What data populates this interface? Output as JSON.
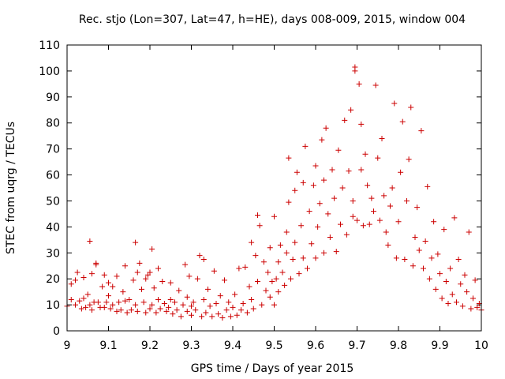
{
  "chart_data": {
    "type": "scatter",
    "title": "Rec. stjo (Lon=307, Lat=47, h=HE), days 008-009, 2015, window 004",
    "xlabel": "GPS time / Days of year 2015",
    "ylabel": "STEC from uqrg / TECUs",
    "xlim": [
      9,
      10
    ],
    "ylim": [
      0,
      110
    ],
    "xticks": [
      9,
      9.1,
      9.2,
      9.3,
      9.4,
      9.5,
      9.6,
      9.7,
      9.8,
      9.9,
      10
    ],
    "xtick_labels": [
      "9",
      "9.1",
      "9.2",
      "9.3",
      "9.4",
      "9.5",
      "9.6",
      "9.7",
      "9.8",
      "9.9",
      "10"
    ],
    "yticks": [
      0,
      10,
      20,
      30,
      40,
      50,
      60,
      70,
      80,
      90,
      100,
      110
    ],
    "ytick_labels": [
      "0",
      "10",
      "20",
      "30",
      "40",
      "50",
      "60",
      "70",
      "80",
      "90",
      "100",
      "110"
    ],
    "grid": false,
    "legend": false,
    "marker": "+",
    "color": "#cc0000",
    "series": [
      {
        "points": [
          [
            9.0,
            9.5
          ],
          [
            9.01,
            12
          ],
          [
            9.01,
            18
          ],
          [
            9.02,
            19.5
          ],
          [
            9.02,
            10
          ],
          [
            9.025,
            22.5
          ],
          [
            9.03,
            11.5
          ],
          [
            9.035,
            8.5
          ],
          [
            9.04,
            12.5
          ],
          [
            9.04,
            20.5
          ],
          [
            9.045,
            9
          ],
          [
            9.05,
            14
          ],
          [
            9.055,
            34.5
          ],
          [
            9.055,
            10
          ],
          [
            9.06,
            22
          ],
          [
            9.06,
            8
          ],
          [
            9.065,
            11
          ],
          [
            9.07,
            26
          ],
          [
            9.07,
            25.5
          ],
          [
            9.075,
            11
          ],
          [
            9.08,
            9
          ],
          [
            9.085,
            17
          ],
          [
            9.09,
            21.5
          ],
          [
            9.09,
            9
          ],
          [
            9.095,
            11
          ],
          [
            9.1,
            18.5
          ],
          [
            9.1,
            13.5
          ],
          [
            9.105,
            8.5
          ],
          [
            9.11,
            17
          ],
          [
            9.11,
            10
          ],
          [
            9.12,
            7.5
          ],
          [
            9.12,
            21
          ],
          [
            9.125,
            11
          ],
          [
            9.13,
            8
          ],
          [
            9.135,
            15
          ],
          [
            9.14,
            11.5
          ],
          [
            9.14,
            25
          ],
          [
            9.145,
            7
          ],
          [
            9.15,
            12
          ],
          [
            9.155,
            8
          ],
          [
            9.16,
            19.5
          ],
          [
            9.165,
            34
          ],
          [
            9.165,
            10
          ],
          [
            9.17,
            22.5
          ],
          [
            9.17,
            7.5
          ],
          [
            9.175,
            26
          ],
          [
            9.18,
            16
          ],
          [
            9.185,
            11
          ],
          [
            9.19,
            7
          ],
          [
            9.19,
            20
          ],
          [
            9.195,
            21.5
          ],
          [
            9.2,
            22.5
          ],
          [
            9.2,
            8.5
          ],
          [
            9.205,
            31.5
          ],
          [
            9.205,
            10
          ],
          [
            9.21,
            16.5
          ],
          [
            9.215,
            7
          ],
          [
            9.22,
            24
          ],
          [
            9.22,
            12
          ],
          [
            9.225,
            8.5
          ],
          [
            9.23,
            19
          ],
          [
            9.235,
            10.5
          ],
          [
            9.24,
            7.5
          ],
          [
            9.245,
            9
          ],
          [
            9.25,
            18.5
          ],
          [
            9.25,
            12
          ],
          [
            9.255,
            6.5
          ],
          [
            9.26,
            11
          ],
          [
            9.265,
            8
          ],
          [
            9.27,
            15.5
          ],
          [
            9.275,
            5.5
          ],
          [
            9.28,
            10
          ],
          [
            9.285,
            25.5
          ],
          [
            9.29,
            7.5
          ],
          [
            9.29,
            13
          ],
          [
            9.295,
            21
          ],
          [
            9.3,
            6
          ],
          [
            9.3,
            9.5
          ],
          [
            9.305,
            11
          ],
          [
            9.31,
            8
          ],
          [
            9.315,
            20
          ],
          [
            9.32,
            29
          ],
          [
            9.325,
            5.5
          ],
          [
            9.33,
            27.5
          ],
          [
            9.33,
            12
          ],
          [
            9.335,
            7
          ],
          [
            9.34,
            16
          ],
          [
            9.345,
            9.5
          ],
          [
            9.35,
            5.5
          ],
          [
            9.355,
            23
          ],
          [
            9.36,
            10.5
          ],
          [
            9.365,
            6.5
          ],
          [
            9.37,
            13.5
          ],
          [
            9.375,
            5
          ],
          [
            9.38,
            19.5
          ],
          [
            9.385,
            8
          ],
          [
            9.39,
            11
          ],
          [
            9.395,
            5.5
          ],
          [
            9.4,
            9
          ],
          [
            9.405,
            14
          ],
          [
            9.41,
            6
          ],
          [
            9.415,
            24
          ],
          [
            9.42,
            8
          ],
          [
            9.425,
            10.5
          ],
          [
            9.43,
            24.5
          ],
          [
            9.435,
            7
          ],
          [
            9.44,
            17
          ],
          [
            9.445,
            34
          ],
          [
            9.445,
            12
          ],
          [
            9.45,
            8.5
          ],
          [
            9.455,
            29
          ],
          [
            9.46,
            19
          ],
          [
            9.46,
            44.5
          ],
          [
            9.465,
            40.5
          ],
          [
            9.47,
            10
          ],
          [
            9.475,
            26.5
          ],
          [
            9.48,
            15.5
          ],
          [
            9.485,
            22.5
          ],
          [
            9.49,
            13
          ],
          [
            9.49,
            32
          ],
          [
            9.495,
            19
          ],
          [
            9.5,
            10
          ],
          [
            9.5,
            44
          ],
          [
            9.505,
            20
          ],
          [
            9.51,
            15
          ],
          [
            9.51,
            26.5
          ],
          [
            9.515,
            33
          ],
          [
            9.52,
            22.5
          ],
          [
            9.525,
            17.5
          ],
          [
            9.53,
            30
          ],
          [
            9.53,
            38
          ],
          [
            9.535,
            49.5
          ],
          [
            9.535,
            66.5
          ],
          [
            9.54,
            20
          ],
          [
            9.545,
            27.5
          ],
          [
            9.55,
            34
          ],
          [
            9.55,
            54
          ],
          [
            9.555,
            61
          ],
          [
            9.56,
            22
          ],
          [
            9.565,
            40.5
          ],
          [
            9.57,
            28
          ],
          [
            9.57,
            57
          ],
          [
            9.575,
            71
          ],
          [
            9.58,
            24
          ],
          [
            9.585,
            46
          ],
          [
            9.59,
            33.5
          ],
          [
            9.595,
            56
          ],
          [
            9.6,
            28
          ],
          [
            9.6,
            63.5
          ],
          [
            9.605,
            40
          ],
          [
            9.61,
            49
          ],
          [
            9.615,
            73.5
          ],
          [
            9.62,
            30
          ],
          [
            9.62,
            58
          ],
          [
            9.625,
            78
          ],
          [
            9.63,
            45
          ],
          [
            9.635,
            36
          ],
          [
            9.64,
            62
          ],
          [
            9.645,
            51
          ],
          [
            9.65,
            30.5
          ],
          [
            9.655,
            69.5
          ],
          [
            9.66,
            41
          ],
          [
            9.665,
            55
          ],
          [
            9.67,
            81
          ],
          [
            9.675,
            37
          ],
          [
            9.68,
            61.5
          ],
          [
            9.685,
            85
          ],
          [
            9.69,
            50
          ],
          [
            9.69,
            44
          ],
          [
            9.695,
            101.5
          ],
          [
            9.695,
            100
          ],
          [
            9.7,
            42.5
          ],
          [
            9.705,
            95
          ],
          [
            9.71,
            79.5
          ],
          [
            9.71,
            62
          ],
          [
            9.715,
            40.5
          ],
          [
            9.72,
            68
          ],
          [
            9.725,
            56
          ],
          [
            9.73,
            41
          ],
          [
            9.735,
            51
          ],
          [
            9.74,
            46
          ],
          [
            9.745,
            94.5
          ],
          [
            9.75,
            66.5
          ],
          [
            9.755,
            42.5
          ],
          [
            9.76,
            74
          ],
          [
            9.765,
            52
          ],
          [
            9.77,
            38
          ],
          [
            9.775,
            33
          ],
          [
            9.78,
            48
          ],
          [
            9.785,
            55
          ],
          [
            9.79,
            87.5
          ],
          [
            9.795,
            28
          ],
          [
            9.8,
            42
          ],
          [
            9.805,
            61
          ],
          [
            9.81,
            80.5
          ],
          [
            9.815,
            27.5
          ],
          [
            9.82,
            50
          ],
          [
            9.825,
            66
          ],
          [
            9.83,
            86
          ],
          [
            9.835,
            25
          ],
          [
            9.84,
            36
          ],
          [
            9.845,
            47.5
          ],
          [
            9.85,
            31
          ],
          [
            9.855,
            77
          ],
          [
            9.86,
            24
          ],
          [
            9.865,
            34.5
          ],
          [
            9.87,
            55.5
          ],
          [
            9.875,
            20
          ],
          [
            9.88,
            28
          ],
          [
            9.885,
            42
          ],
          [
            9.89,
            16
          ],
          [
            9.895,
            29.5
          ],
          [
            9.9,
            22
          ],
          [
            9.905,
            12.5
          ],
          [
            9.91,
            39
          ],
          [
            9.915,
            19
          ],
          [
            9.92,
            10.5
          ],
          [
            9.925,
            24
          ],
          [
            9.93,
            14
          ],
          [
            9.935,
            43.5
          ],
          [
            9.94,
            11
          ],
          [
            9.945,
            27.5
          ],
          [
            9.95,
            18
          ],
          [
            9.955,
            9.5
          ],
          [
            9.96,
            21.5
          ],
          [
            9.965,
            15
          ],
          [
            9.97,
            38
          ],
          [
            9.975,
            8.5
          ],
          [
            9.98,
            12.5
          ],
          [
            9.985,
            19.5
          ],
          [
            9.99,
            9
          ],
          [
            9.995,
            10.5
          ],
          [
            10.0,
            8
          ]
        ]
      }
    ]
  }
}
